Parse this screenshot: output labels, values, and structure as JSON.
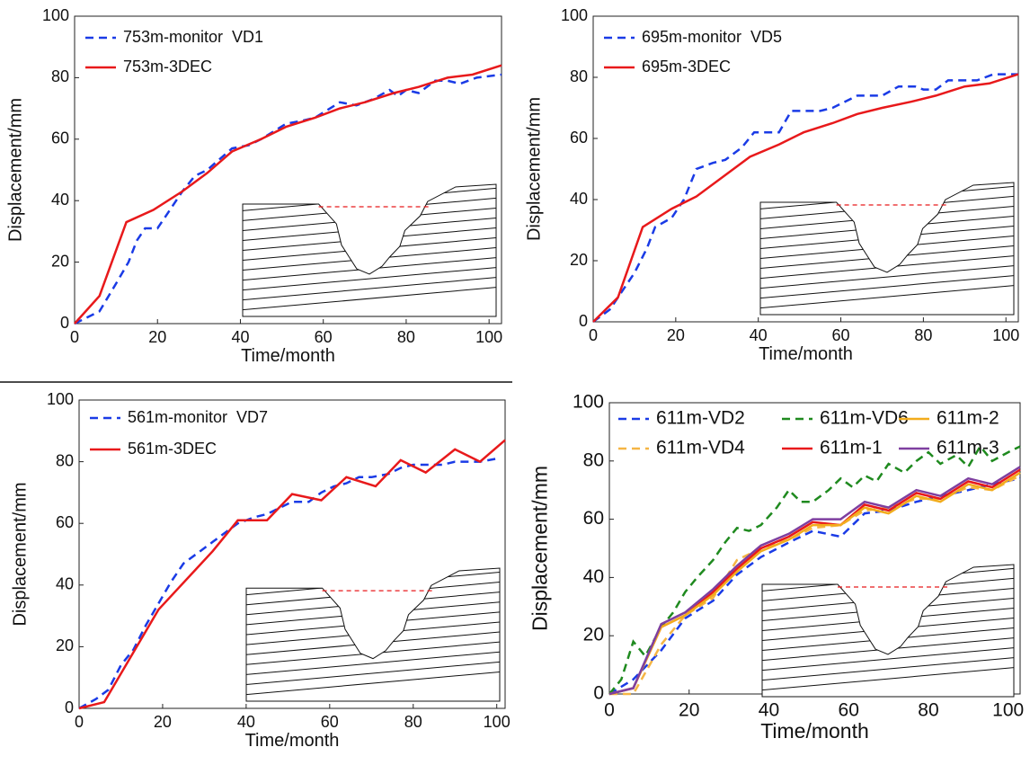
{
  "chart_data": [
    {
      "type": "line",
      "xlabel": "Time/month",
      "ylabel": "Displacement/mm",
      "xlim": [
        0,
        103
      ],
      "ylim": [
        0,
        100
      ],
      "xticks": [
        0,
        20,
        40,
        60,
        80,
        100
      ],
      "yticks": [
        0,
        20,
        40,
        60,
        80,
        100
      ],
      "legend": "upper left",
      "legend_columns": 1,
      "series": [
        {
          "name": "753m-monitor  VD1",
          "color": "#1a3be6",
          "line_style": "dashed",
          "x": [
            0,
            6,
            10,
            13,
            15,
            17,
            20,
            22,
            26,
            29,
            32,
            38,
            42,
            45,
            51,
            55,
            58,
            64,
            68,
            72,
            76,
            78,
            80,
            83,
            87,
            90,
            93,
            97,
            103
          ],
          "values": [
            0,
            4,
            13,
            20,
            27,
            31,
            31,
            35,
            43,
            48,
            50,
            57,
            58,
            60,
            65,
            66,
            67,
            72,
            71,
            73,
            76,
            74,
            76,
            75,
            79,
            79,
            78,
            80,
            81
          ]
        },
        {
          "name": "753m-3DEC",
          "color": "#e8191b",
          "line_style": "solid",
          "x": [
            0,
            6,
            12.5,
            19,
            26,
            32,
            38,
            45,
            51,
            58,
            64,
            70,
            77,
            83,
            90,
            96,
            103
          ],
          "values": [
            0,
            9,
            33,
            37,
            43,
            49,
            56,
            60,
            64,
            67,
            70,
            72,
            75,
            77,
            80,
            81,
            84
          ]
        }
      ]
    },
    {
      "type": "line",
      "xlabel": "Time/month",
      "ylabel": "Displacement/mm",
      "xlim": [
        0,
        103
      ],
      "ylim": [
        0,
        100
      ],
      "xticks": [
        0,
        20,
        40,
        60,
        80,
        100
      ],
      "yticks": [
        0,
        20,
        40,
        60,
        80,
        100
      ],
      "legend": "upper left",
      "legend_columns": 1,
      "series": [
        {
          "name": "695m-monitor  VD5",
          "color": "#1a3be6",
          "line_style": "dashed",
          "x": [
            0,
            4,
            6,
            10,
            13,
            15,
            19,
            22,
            25,
            29,
            32,
            36,
            39,
            45,
            48,
            55,
            58,
            64,
            70,
            74,
            78,
            80,
            83,
            86,
            90,
            93,
            97,
            103
          ],
          "values": [
            0,
            4,
            8,
            16,
            24,
            31,
            34,
            40,
            50,
            52,
            53,
            57,
            62,
            62,
            69,
            69,
            70,
            74,
            74,
            77,
            77,
            76,
            76,
            79,
            79,
            79,
            81,
            81
          ]
        },
        {
          "name": "695m-3DEC",
          "color": "#e8191b",
          "line_style": "solid",
          "x": [
            0,
            6,
            12,
            19,
            25,
            32,
            38,
            45,
            51,
            58,
            64,
            70,
            77,
            83,
            90,
            96,
            103
          ],
          "values": [
            0,
            8,
            31,
            37,
            41,
            48,
            54,
            58,
            62,
            65,
            68,
            70,
            72,
            74,
            77,
            78,
            81
          ]
        }
      ]
    },
    {
      "type": "line",
      "xlabel": "Time/month",
      "ylabel": "Displacement/mm",
      "xlim": [
        0,
        102
      ],
      "ylim": [
        0,
        100
      ],
      "xticks": [
        0,
        20,
        40,
        60,
        80,
        100
      ],
      "yticks": [
        0,
        20,
        40,
        60,
        80,
        100
      ],
      "legend": "upper left",
      "legend_columns": 1,
      "series": [
        {
          "name": "561m-monitor  VD7",
          "color": "#1a3be6",
          "line_style": "dashed",
          "x": [
            0,
            4,
            7,
            10,
            13,
            16,
            19,
            22,
            25,
            29,
            32,
            35,
            38,
            42,
            45,
            48,
            51,
            55,
            58,
            61,
            64,
            67,
            70,
            74,
            77,
            80,
            83,
            87,
            90,
            93,
            96,
            100
          ],
          "values": [
            0,
            3,
            6,
            14,
            19,
            27,
            34,
            41,
            47,
            51,
            54,
            57,
            60,
            62,
            63,
            65,
            67,
            67,
            70,
            72,
            73,
            75,
            75,
            76,
            78,
            79,
            79,
            79,
            80,
            80,
            80,
            81
          ]
        },
        {
          "name": "561m-3DEC",
          "color": "#e8191b",
          "line_style": "solid",
          "x": [
            0,
            6,
            19,
            32,
            38,
            45,
            51,
            58,
            64,
            71,
            77,
            83,
            90,
            96,
            102
          ],
          "values": [
            0,
            2,
            32,
            51,
            61,
            61,
            69.5,
            67.5,
            75,
            72,
            80.5,
            76.5,
            84,
            80,
            87
          ]
        }
      ]
    },
    {
      "type": "line",
      "xlabel": "Time/month",
      "ylabel": "Displacement/mm",
      "xlim": [
        0,
        103
      ],
      "ylim": [
        0,
        100
      ],
      "xticks": [
        0,
        20,
        40,
        60,
        80,
        100
      ],
      "yticks": [
        0,
        20,
        40,
        60,
        80,
        100
      ],
      "legend": "upper left",
      "legend_columns": 3,
      "series": [
        {
          "name": "611m-VD2",
          "color": "#1a3be6",
          "line_style": "dashed",
          "x": [
            0,
            6,
            13,
            19,
            26,
            32,
            38,
            45,
            51,
            58,
            64,
            70,
            77,
            83,
            90,
            96,
            103
          ],
          "values": [
            0,
            5,
            15,
            26,
            32,
            41,
            47,
            52,
            56,
            54,
            62,
            63,
            66,
            68,
            70,
            72,
            74
          ]
        },
        {
          "name": "611m-VD4",
          "color": "#f5b544",
          "line_style": "dashed",
          "x": [
            0,
            6,
            13,
            19,
            26,
            32,
            38,
            45,
            51,
            58,
            64,
            70,
            77,
            83,
            90,
            96,
            103
          ],
          "values": [
            0,
            0,
            17,
            27,
            33,
            46,
            50,
            53,
            57,
            58,
            63,
            64,
            67,
            67,
            71,
            70,
            75
          ]
        },
        {
          "name": "611m-VD6",
          "color": "#1f8a1f",
          "line_style": "dashed",
          "x": [
            0,
            3,
            6,
            9,
            13,
            16,
            19,
            22,
            26,
            29,
            32,
            35,
            38,
            42,
            45,
            48,
            51,
            55,
            58,
            61,
            64,
            67,
            70,
            74,
            77,
            80,
            83,
            87,
            90,
            93,
            96,
            100,
            103
          ],
          "values": [
            0,
            5,
            18,
            13,
            23,
            28,
            35,
            40,
            46,
            52,
            57,
            56,
            58,
            64,
            70,
            66,
            66,
            70,
            74,
            71,
            75,
            73,
            79,
            76,
            80,
            83,
            79,
            82,
            78,
            85,
            80,
            83,
            85
          ]
        },
        {
          "name": "611m-1",
          "color": "#e8191b",
          "line_style": "solid",
          "x": [
            0,
            6,
            13,
            19,
            26,
            32,
            38,
            45,
            51,
            58,
            64,
            70,
            77,
            83,
            90,
            96,
            103
          ],
          "values": [
            0,
            2,
            23,
            27,
            35,
            43,
            50,
            54,
            59,
            58,
            65,
            63,
            69,
            67,
            73,
            71,
            77
          ]
        },
        {
          "name": "611m-2",
          "color": "#f2ac1c",
          "line_style": "solid",
          "x": [
            0,
            6,
            13,
            19,
            26,
            32,
            38,
            45,
            51,
            58,
            64,
            70,
            77,
            83,
            90,
            96,
            103
          ],
          "values": [
            0,
            2,
            23,
            27,
            34,
            42,
            49,
            53,
            58,
            58,
            64,
            62,
            68,
            66,
            72,
            70,
            76
          ]
        },
        {
          "name": "611m-3",
          "color": "#7e3fa0",
          "line_style": "solid",
          "x": [
            0,
            6,
            13,
            19,
            26,
            32,
            38,
            45,
            51,
            58,
            64,
            70,
            77,
            83,
            90,
            96,
            103
          ],
          "values": [
            0,
            2,
            24,
            28,
            36,
            44,
            51,
            55,
            60,
            60,
            66,
            64,
            70,
            68,
            74,
            72,
            78
          ]
        }
      ]
    }
  ]
}
